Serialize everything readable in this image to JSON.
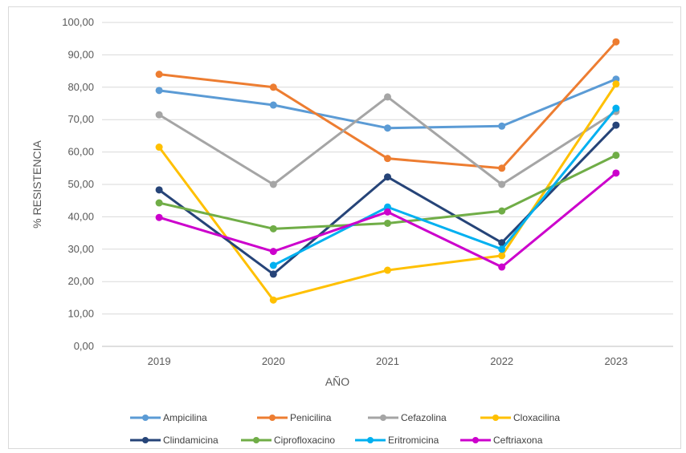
{
  "chart_data": {
    "type": "line",
    "title": "",
    "xlabel": "AÑO",
    "ylabel": "% RESISTENCIA",
    "x": [
      "2019",
      "2020",
      "2021",
      "2022",
      "2023"
    ],
    "ylim": [
      0,
      100
    ],
    "yticks": [
      "0,00",
      "10,00",
      "20,00",
      "30,00",
      "40,00",
      "50,00",
      "60,00",
      "70,00",
      "80,00",
      "90,00",
      "100,00"
    ],
    "grid": true,
    "legend_position": "bottom",
    "series": [
      {
        "name": "Ampicilina",
        "color": "#5B9BD5",
        "values": [
          79.0,
          74.5,
          67.4,
          68.0,
          82.5
        ]
      },
      {
        "name": "Penicilina",
        "color": "#ED7D31",
        "values": [
          84.0,
          80.0,
          58.0,
          55.0,
          94.0
        ]
      },
      {
        "name": "Cefazolina",
        "color": "#A5A5A5",
        "values": [
          71.5,
          50.0,
          77.0,
          50.0,
          72.5
        ]
      },
      {
        "name": "Cloxacilina",
        "color": "#FFC000",
        "values": [
          61.5,
          14.3,
          23.5,
          28.0,
          81.0
        ]
      },
      {
        "name": "Clindamicina",
        "color": "#264478",
        "values": [
          48.3,
          22.3,
          52.3,
          32.0,
          68.3
        ]
      },
      {
        "name": "Ciprofloxacino",
        "color": "#70AD47",
        "values": [
          44.3,
          36.3,
          38.0,
          41.8,
          59.0
        ]
      },
      {
        "name": "Eritromicina",
        "color": "#00B0F0",
        "values": [
          null,
          25.0,
          43.0,
          30.0,
          73.5
        ]
      },
      {
        "name": "Ceftriaxona",
        "color": "#CC00CC",
        "values": [
          39.8,
          29.3,
          41.5,
          24.5,
          53.5
        ]
      }
    ]
  }
}
